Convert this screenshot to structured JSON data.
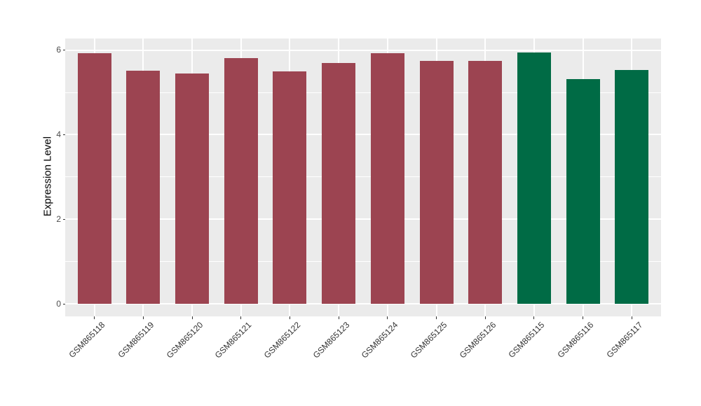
{
  "chart_data": {
    "type": "bar",
    "title": "",
    "xlabel": "",
    "ylabel": "Expression Level",
    "categories": [
      "GSM865118",
      "GSM865119",
      "GSM865120",
      "GSM865121",
      "GSM865122",
      "GSM865123",
      "GSM865124",
      "GSM865125",
      "GSM865126",
      "GSM865115",
      "GSM865116",
      "GSM865117"
    ],
    "values": [
      5.93,
      5.51,
      5.45,
      5.81,
      5.5,
      5.7,
      5.92,
      5.74,
      5.74,
      5.95,
      5.32,
      5.53
    ],
    "colors": [
      "#9C4451",
      "#9C4451",
      "#9C4451",
      "#9C4451",
      "#9C4451",
      "#9C4451",
      "#9C4451",
      "#9C4451",
      "#9C4451",
      "#006B45",
      "#006B45",
      "#006B45"
    ],
    "group_colors": {
      "red_group": "#9C4451",
      "green_group": "#006B45"
    },
    "ylim": [
      0,
      6.3
    ],
    "yticks": [
      0,
      2,
      4,
      6
    ],
    "ytick_labels": [
      "0",
      "2",
      "4",
      "6"
    ],
    "minor_ticks": [
      1,
      3,
      5
    ],
    "grid": "on",
    "legend_position": "none",
    "plot_background": "#EBEBEB",
    "grid_color": "#FFFFFF",
    "axis_text_color": "#4d4d4d",
    "tick_mark_color": "#333333",
    "x_label_rotation_deg": 45
  }
}
